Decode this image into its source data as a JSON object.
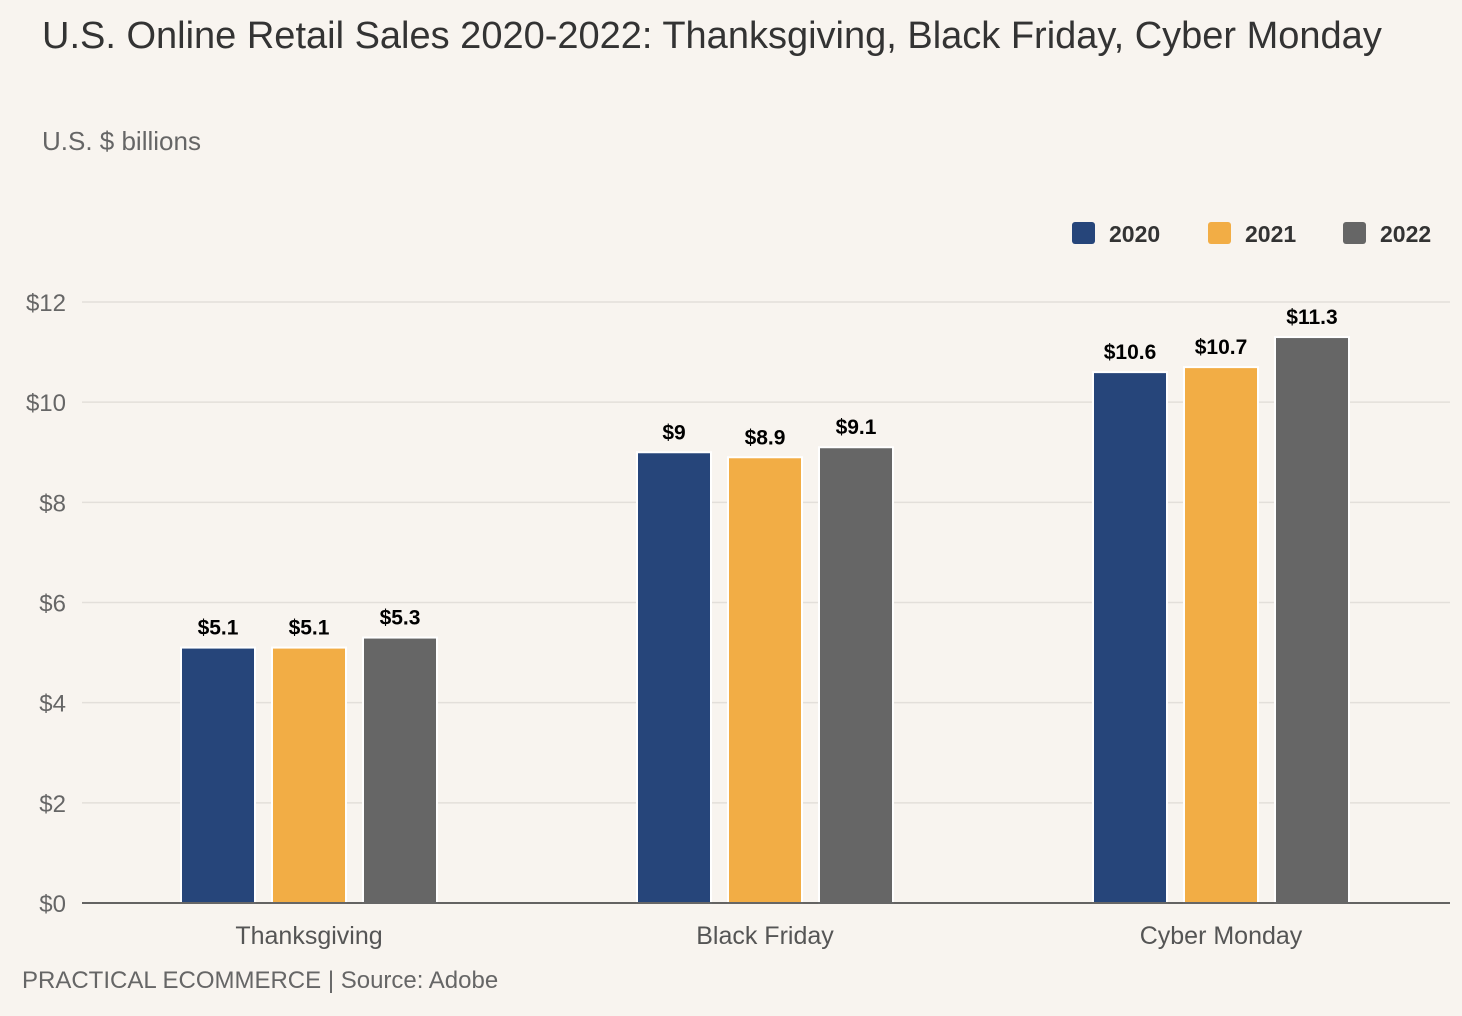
{
  "chart_data": {
    "type": "bar",
    "title": "U.S. Online Retail Sales 2020-2022: Thanksgiving, Black Friday, Cyber Monday",
    "subtitle": "U.S. $ billions",
    "xlabel": "",
    "ylabel": "",
    "ylim": [
      0,
      12
    ],
    "yticks": [
      0,
      2,
      4,
      6,
      8,
      10,
      12
    ],
    "ytick_labels": [
      "$0",
      "$2",
      "$4",
      "$6",
      "$8",
      "$10",
      "$12"
    ],
    "categories": [
      "Thanksgiving",
      "Black Friday",
      "Cyber Monday"
    ],
    "series": [
      {
        "name": "2020",
        "color": "#26457a",
        "values": [
          5.1,
          9.0,
          10.6
        ],
        "labels": [
          "$5.1",
          "$9",
          "$10.6"
        ]
      },
      {
        "name": "2021",
        "color": "#f2ad45",
        "values": [
          5.1,
          8.9,
          10.7
        ],
        "labels": [
          "$5.1",
          "$8.9",
          "$10.7"
        ]
      },
      {
        "name": "2022",
        "color": "#666666",
        "values": [
          5.3,
          9.1,
          11.3
        ],
        "labels": [
          "$5.3",
          "$9.1",
          "$11.3"
        ]
      }
    ],
    "legend_position": "top-right",
    "grid": true
  },
  "footer": "PRACTICAL ECOMMERCE | Source: Adobe"
}
